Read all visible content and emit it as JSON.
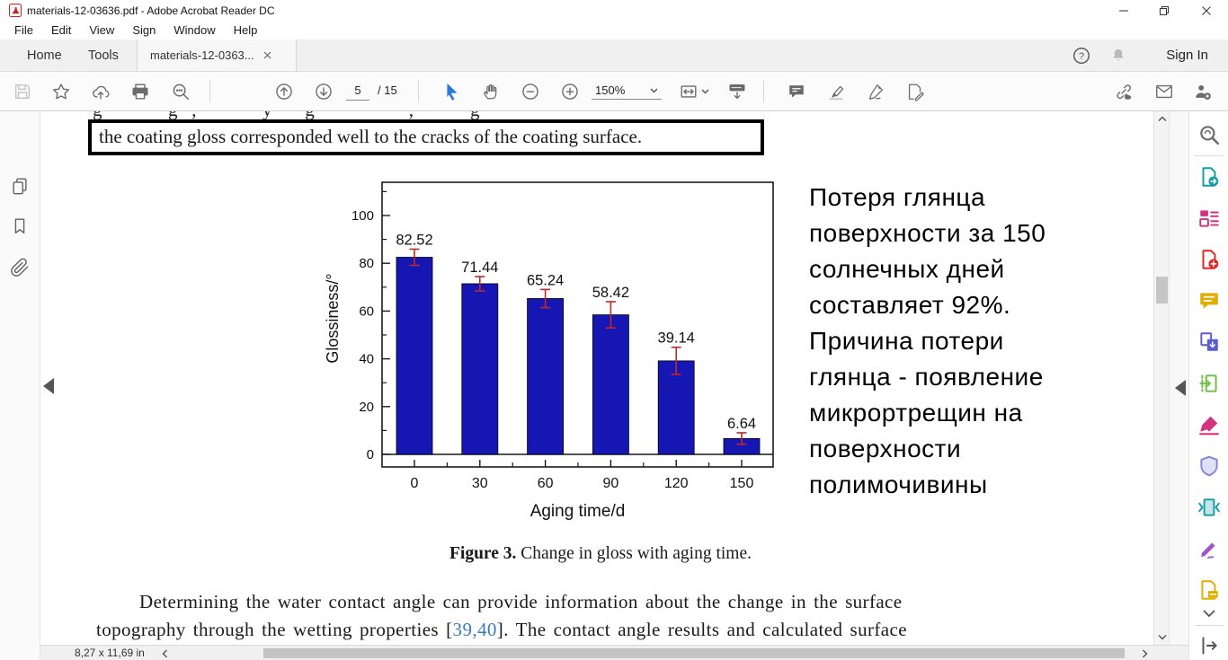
{
  "window": {
    "title": "materials-12-03636.pdf - Adobe Acrobat Reader DC",
    "icons": [
      "acrobat-pdf-icon",
      "minimize-icon",
      "restore-icon",
      "close-icon"
    ]
  },
  "menu": {
    "items": [
      "File",
      "Edit",
      "View",
      "Sign",
      "Window",
      "Help"
    ]
  },
  "tabbar": {
    "home": "Home",
    "tools": "Tools",
    "document_tab": "materials-12-0363...",
    "sign_in": "Sign In",
    "icons": [
      "tab-close-icon",
      "help-icon",
      "notifications-bell-icon"
    ]
  },
  "toolbar": {
    "page_current": "5",
    "page_total": "/ 15",
    "zoom_level": "150%",
    "icons": [
      "save-icon",
      "star-favorites-icon",
      "share-cloud-icon",
      "print-icon",
      "search-icon",
      "page-up-icon",
      "page-down-icon",
      "select-tool-icon",
      "hand-tool-icon",
      "zoom-out-icon",
      "zoom-in-icon",
      "zoom-caret-icon",
      "fit-width-icon",
      "reading-mode-icon",
      "comment-tool-icon",
      "highlight-tool-icon",
      "sign-tool-icon",
      "custom-tool-icon",
      "share-link-icon",
      "email-icon",
      "send-for-signature-icon"
    ]
  },
  "left_rail": {
    "icons": [
      "page-thumbnails-icon",
      "bookmarks-icon",
      "attachments-icon"
    ]
  },
  "right_panel": {
    "search_icon": "search-tools-icon",
    "tools": [
      {
        "name": "export-pdf",
        "color": "#169ca5"
      },
      {
        "name": "organize-pages",
        "color": "#d4327c"
      },
      {
        "name": "create-pdf",
        "color": "#e12725"
      },
      {
        "name": "comment",
        "color": "#dfae00"
      },
      {
        "name": "combine-files",
        "color": "#5a5ad2"
      },
      {
        "name": "scan-ocr",
        "color": "#6cbe45"
      },
      {
        "name": "redact",
        "color": "#d4327c"
      },
      {
        "name": "protect",
        "color": "#8585dd"
      },
      {
        "name": "compress-pdf",
        "color": "#169ca5"
      },
      {
        "name": "fill-and-sign",
        "color": "#a24fd0"
      },
      {
        "name": "prepare-form",
        "color": "#dfae00"
      }
    ],
    "icons": [
      "more-tools-chevron-icon",
      "open-tools-panel-icon"
    ]
  },
  "document": {
    "clipped_line": "g              g   ,              y       g                    ,            g",
    "boxed_sentence": "the coating gloss corresponded well to the cracks of the coating surface.",
    "annotation_ru": "Потеря глянца\nповерхности за 150\nсолнечных дней\nсоставляет 92%.\nПричина потери\nглянца - появление\nмикрортрещин на\nповерхности\nполимочивины",
    "figure_caption_label": "Figure 3.",
    "figure_caption_text": " Change in gloss with aging time.",
    "para_line1": "Determining the water contact angle can provide information about the change in the surface",
    "para_line2_pre": "topography through the wetting properties [",
    "para_line2_link": "39,40",
    "para_line2_post": "].  The contact angle results and calculated surface"
  },
  "status_bar": {
    "page_size": "8,27 x 11,69 in",
    "icons": [
      "scroll-left-icon",
      "scroll-right-icon"
    ]
  },
  "chart_data": {
    "type": "bar",
    "title": "Figure 3. Change in gloss with aging time.",
    "categories": [
      "0",
      "30",
      "60",
      "90",
      "120",
      "150"
    ],
    "values": [
      82.52,
      71.44,
      65.24,
      58.42,
      39.14,
      6.64
    ],
    "errors": [
      3.4,
      3.0,
      3.8,
      5.5,
      5.7,
      2.4
    ],
    "value_labels": [
      "82.52",
      "71.44",
      "65.24",
      "58.42",
      "39.14",
      "6.64"
    ],
    "xlabel": "Aging time/d",
    "ylabel": "Glossiness/°",
    "y_ticks": [
      0,
      20,
      40,
      60,
      80,
      100
    ],
    "ylim": [
      0,
      114
    ],
    "grid": false,
    "legend": null,
    "bar_color": "#1616b2",
    "error_color": "#c02828"
  }
}
